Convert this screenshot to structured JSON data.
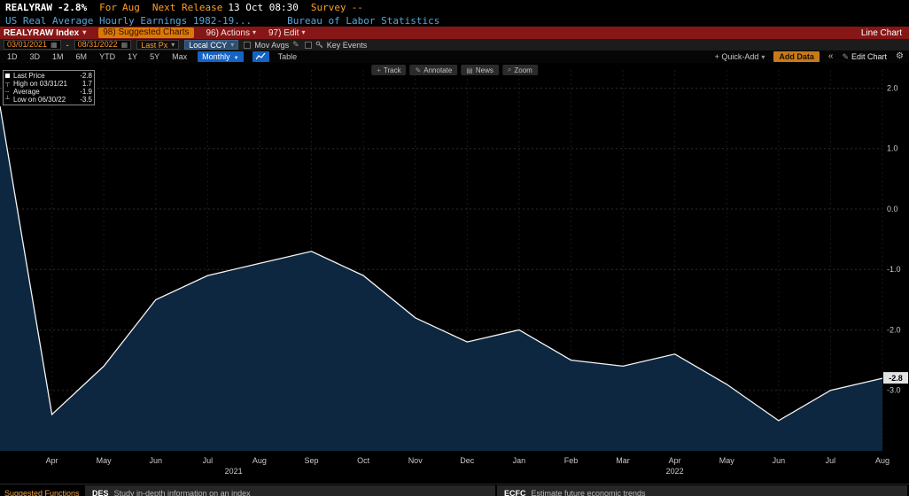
{
  "header": {
    "ticker": "REALYRAW",
    "change": "-2.8%",
    "for_label": "For",
    "for_value": "Aug",
    "next_release_label": "Next Release",
    "next_release_value": "13 Oct 08:30",
    "survey_label": "Survey",
    "survey_value": "--",
    "description": "US Real Average Hourly Earnings 1982-19...",
    "source": "Bureau of Labor Statistics"
  },
  "command_bar": {
    "security": "REALYRAW Index",
    "menu_suggested": "98) Suggested Charts",
    "menu_actions": "96) Actions",
    "menu_edit": "97) Edit",
    "chart_type": "Line Chart"
  },
  "toolbar": {
    "date_from": "03/01/2021",
    "date_separator": "-",
    "date_to": "08/31/2022",
    "px_field": "Last Px",
    "currency": "Local CCY",
    "mov_avgs_label": "Mov Avgs",
    "key_events_label": "Key Events",
    "periods": [
      "1D",
      "3D",
      "1M",
      "6M",
      "YTD",
      "1Y",
      "5Y",
      "Max"
    ],
    "frequency": "Monthly",
    "table_label": "Table",
    "quick_add_label": "+ Quick-Add",
    "add_data_label": "Add Data",
    "edit_chart_label": "Edit Chart"
  },
  "chart_tools": [
    {
      "label": "Track"
    },
    {
      "label": "Annotate"
    },
    {
      "label": "News"
    },
    {
      "label": "Zoom"
    }
  ],
  "legend": {
    "rows": [
      {
        "label": "Last Price",
        "value": "-2.8"
      },
      {
        "label": "High on 03/31/21",
        "value": "1.7"
      },
      {
        "label": "Average",
        "value": "-1.9"
      },
      {
        "label": "Low on 06/30/22",
        "value": "-3.5"
      }
    ]
  },
  "chart_data": {
    "type": "area",
    "title": "US Real Average Hourly Earnings YoY % (REALYRAW Index)",
    "x": [
      "Mar 2021",
      "Apr 2021",
      "May 2021",
      "Jun 2021",
      "Jul 2021",
      "Aug 2021",
      "Sep 2021",
      "Oct 2021",
      "Nov 2021",
      "Dec 2021",
      "Jan 2022",
      "Feb 2022",
      "Mar 2022",
      "Apr 2022",
      "May 2022",
      "Jun 2022",
      "Jul 2022",
      "Aug 2022"
    ],
    "values": [
      1.7,
      -3.4,
      -2.6,
      -1.5,
      -1.1,
      -0.9,
      -0.7,
      -1.1,
      -1.8,
      -2.2,
      -2.0,
      -2.5,
      -2.6,
      -2.4,
      -2.9,
      -3.5,
      -3.0,
      -2.8
    ],
    "x_tick_labels": [
      "Apr",
      "May",
      "Jun",
      "Jul",
      "Aug",
      "Sep",
      "Oct",
      "Nov",
      "Dec",
      "Jan",
      "Feb",
      "Mar",
      "Apr",
      "May",
      "Jun",
      "Jul",
      "Aug"
    ],
    "year_labels": [
      {
        "label": "2021",
        "index": 4.5
      },
      {
        "label": "2022",
        "index": 13
      }
    ],
    "y_ticks": [
      2.0,
      1.0,
      0.0,
      -1.0,
      -2.0,
      -3.0
    ],
    "ylim": [
      -4.0,
      2.3
    ],
    "last_price": -2.8,
    "line_color": "#f5f5f5",
    "fill_color": "#0d2740",
    "grid": true,
    "legend_position": "top-left"
  },
  "icons": {
    "caret_down": "▾",
    "dropdown": "▼",
    "calendar": "▦",
    "pencil": "✎",
    "track": "+",
    "annotate": "✎",
    "news": "▤",
    "zoom": "⌕",
    "chevrons_left": "«",
    "gear": "⚙",
    "high_marker": "┬",
    "average_marker": "┄",
    "low_marker": "┴"
  },
  "colors": {
    "amber": "#fb9a2d",
    "header_blue": "#58a6dc",
    "command_bar_red": "#871616",
    "highlight_orange": "#d97a06",
    "button_blue": "#1563c4",
    "area_fill": "#0d2740",
    "line": "#f5f5f5"
  },
  "footer": {
    "suggested_label": "Suggested Functions",
    "items": [
      {
        "code": "DES",
        "desc": "Study in-depth information on an index"
      },
      {
        "code": "ECFC",
        "desc": "Estimate future economic trends"
      }
    ]
  }
}
